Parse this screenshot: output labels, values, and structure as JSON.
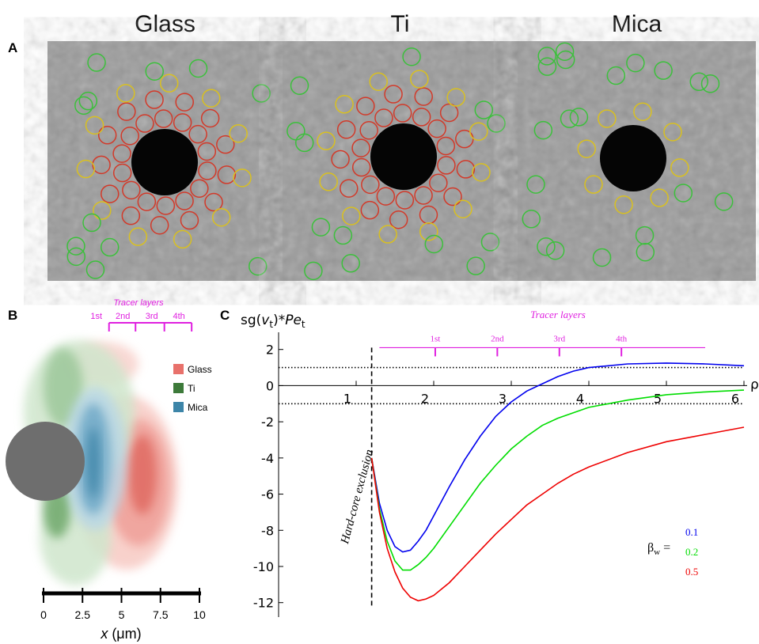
{
  "panel_labels": [
    "A",
    "B",
    "C"
  ],
  "panel_a": {
    "titles": [
      "Glass",
      "Ti",
      "Mica"
    ]
  },
  "panel_b": {
    "tracer_title": "Tracer layers",
    "tracer_labels": [
      "1st",
      "2nd",
      "3rd",
      "4th"
    ],
    "tracer_x": [
      4.2,
      5.9,
      7.75,
      9.5
    ],
    "legend": [
      {
        "name": "Glass",
        "color": "#e8716b"
      },
      {
        "name": "Ti",
        "color": "#3d7a3a"
      },
      {
        "name": "Mica",
        "color": "#3d85a8"
      }
    ],
    "xlim": [
      0,
      10
    ],
    "xticks": [
      0,
      2.5,
      5,
      7.5,
      10
    ],
    "xlabel_parts": [
      "x",
      " (μm)"
    ]
  },
  "chart_data": {
    "type": "line",
    "ylabel_parts": [
      "sg(",
      "v",
      "t",
      ")*",
      "Pe",
      "t"
    ],
    "xlabel": "ρ",
    "xlim": [
      0,
      6
    ],
    "ylim": [
      -12.8,
      2.95
    ],
    "xticks": [
      1,
      2,
      3,
      4,
      5,
      6
    ],
    "yticks": [
      -12,
      -10,
      -8,
      -6,
      -4,
      -2,
      0,
      2
    ],
    "reference_lines": [
      1,
      -1
    ],
    "exclusion": {
      "x": 1.2,
      "label": "Hard-core exclusion"
    },
    "tracer_layers": {
      "title": "Tracer layers",
      "labels": [
        "1st",
        "2nd",
        "3rd",
        "4th"
      ],
      "x": [
        2.02,
        2.82,
        3.62,
        4.42
      ],
      "y": 2.1,
      "span": [
        1.3,
        5.5
      ]
    },
    "legend_title_parts": [
      "β",
      "w",
      " ="
    ],
    "x": [
      1.2,
      1.3,
      1.4,
      1.5,
      1.6,
      1.7,
      1.8,
      1.9,
      2.0,
      2.2,
      2.4,
      2.6,
      2.8,
      3.0,
      3.2,
      3.4,
      3.6,
      3.8,
      4.0,
      4.5,
      5.0,
      5.5,
      6.0
    ],
    "series": [
      {
        "name": "0.1",
        "color": "#0000ee",
        "values": [
          -4,
          -6.5,
          -8,
          -8.9,
          -9.2,
          -9.1,
          -8.6,
          -8,
          -7.2,
          -5.6,
          -4.1,
          -2.8,
          -1.7,
          -0.9,
          -0.3,
          0.1,
          0.5,
          0.8,
          1.0,
          1.2,
          1.25,
          1.2,
          1.1
        ]
      },
      {
        "name": "0.2",
        "color": "#00dd00",
        "values": [
          -4,
          -6.8,
          -8.6,
          -9.7,
          -10.2,
          -10.2,
          -9.9,
          -9.5,
          -9,
          -7.8,
          -6.6,
          -5.4,
          -4.4,
          -3.5,
          -2.8,
          -2.2,
          -1.8,
          -1.5,
          -1.2,
          -0.8,
          -0.5,
          -0.35,
          -0.25
        ]
      },
      {
        "name": "0.5",
        "color": "#ee0000",
        "values": [
          -4,
          -7,
          -9,
          -10.3,
          -11.2,
          -11.7,
          -11.9,
          -11.8,
          -11.6,
          -10.9,
          -10,
          -9.1,
          -8.2,
          -7.4,
          -6.6,
          -6,
          -5.4,
          -4.9,
          -4.5,
          -3.7,
          -3.1,
          -2.7,
          -2.3
        ]
      }
    ]
  }
}
